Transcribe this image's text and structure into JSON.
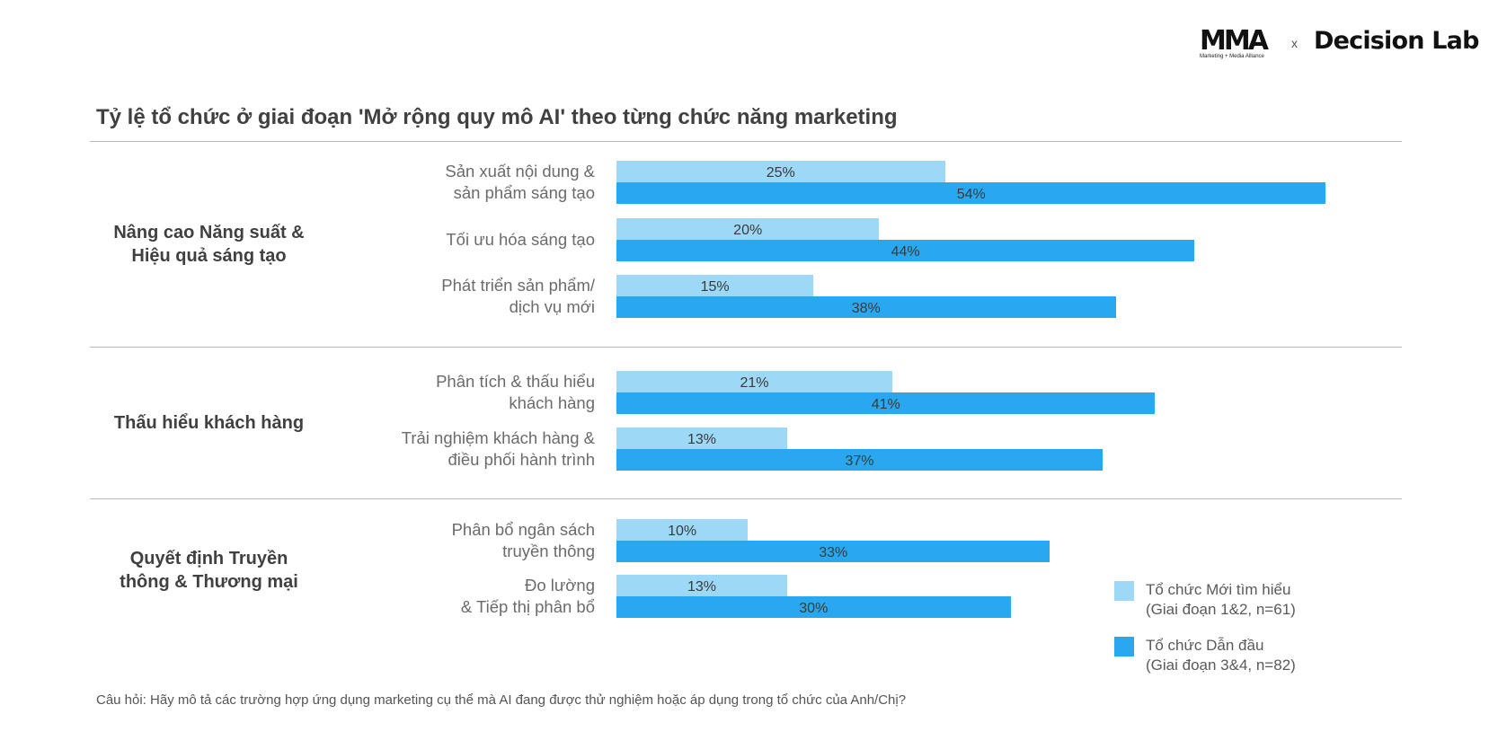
{
  "logos": {
    "mma": "MMA",
    "mma_tagline": "Marketing + Media Alliance",
    "separator": "x",
    "partner": "Decision Lab"
  },
  "colors": {
    "series_new": "#9dd8f7",
    "series_leader": "#29a8ef",
    "rule": "#b8b8b8"
  },
  "chart_data": {
    "type": "bar",
    "orientation": "horizontal",
    "title": "Tỷ lệ tổ chức ở giai đoạn 'Mở rộng quy mô AI' theo từng chức năng marketing",
    "xlim": [
      0,
      60
    ],
    "grid": false,
    "legend_position": "bottom-right",
    "groups": [
      {
        "name": "Nâng cao Năng suất & Hiệu quả sáng tạo",
        "lines": [
          "Nâng cao Năng suất &",
          "Hiệu quả sáng tạo"
        ],
        "categories": [
          {
            "lines": [
              "Sản xuất nội dung &",
              "sản phẩm sáng tạo"
            ],
            "values": [
              25,
              54
            ],
            "labels": [
              "25%",
              "54%"
            ]
          },
          {
            "lines": [
              "Tối ưu hóa sáng tạo"
            ],
            "values": [
              20,
              44
            ],
            "labels": [
              "20%",
              "44%"
            ]
          },
          {
            "lines": [
              "Phát triển sản phẩm/",
              "dịch vụ mới"
            ],
            "values": [
              15,
              38
            ],
            "labels": [
              "15%",
              "38%"
            ]
          }
        ]
      },
      {
        "name": "Thấu hiểu khách hàng",
        "lines": [
          "Thấu hiểu khách hàng"
        ],
        "categories": [
          {
            "lines": [
              "Phân tích & thấu hiểu",
              "khách hàng"
            ],
            "values": [
              21,
              41
            ],
            "labels": [
              "21%",
              "41%"
            ]
          },
          {
            "lines": [
              "Trải nghiệm khách hàng &",
              "điều phối hành trình"
            ],
            "values": [
              13,
              37
            ],
            "labels": [
              "13%",
              "37%"
            ]
          }
        ]
      },
      {
        "name": "Quyết định Truyền thông & Thương mại",
        "lines": [
          "Quyết định Truyền",
          "thông & Thương mại"
        ],
        "categories": [
          {
            "lines": [
              "Phân bổ ngân sách",
              "truyền thông"
            ],
            "values": [
              10,
              33
            ],
            "labels": [
              "10%",
              "33%"
            ]
          },
          {
            "lines": [
              "Đo lường",
              "& Tiếp thị phân bổ"
            ],
            "values": [
              13,
              30
            ],
            "labels": [
              "13%",
              "30%"
            ]
          }
        ]
      }
    ],
    "series": [
      {
        "name": "Tổ chức Mới tìm hiểu (Giai đoạn 1&2, n=61)",
        "lines": [
          "Tổ chức Mới tìm hiểu",
          "(Giai đoạn 1&2, n=61)"
        ],
        "color": "#9dd8f7"
      },
      {
        "name": "Tổ chức Dẫn đầu (Giai đoạn 3&4, n=82)",
        "lines": [
          "Tổ chức Dẫn đầu",
          "(Giai đoạn 3&4, n=82)"
        ],
        "color": "#29a8ef"
      }
    ]
  },
  "footnote": "Câu hỏi: Hãy mô tả các trường hợp ứng dụng marketing cụ thể mà AI đang được thử nghiệm hoặc áp dụng trong tổ chức của Anh/Chị?"
}
